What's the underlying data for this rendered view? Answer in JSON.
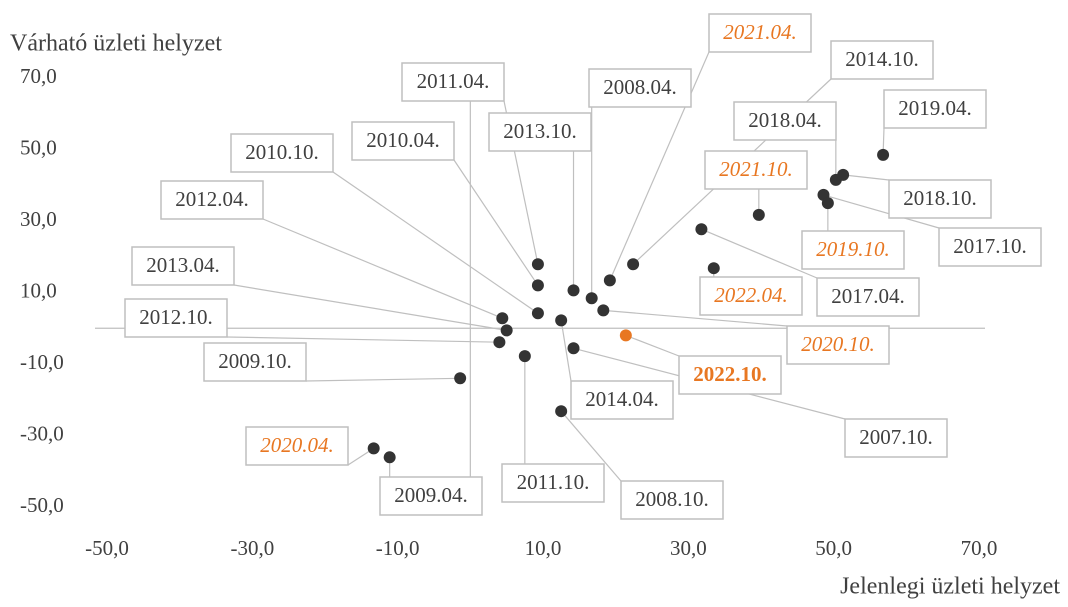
{
  "chart_data": {
    "type": "scatter",
    "y_label": "Várható üzleti helyzet",
    "x_label": "Jelenlegi üzleti helyzet",
    "xlim": [
      -50,
      70
    ],
    "ylim": [
      -50,
      70
    ],
    "xticks": [
      {
        "value": -50,
        "label": "-50,0"
      },
      {
        "value": -30,
        "label": "-30,0"
      },
      {
        "value": -10,
        "label": "-10,0"
      },
      {
        "value": 10,
        "label": "10,0"
      },
      {
        "value": 30,
        "label": "30,0"
      },
      {
        "value": 50,
        "label": "50,0"
      },
      {
        "value": 70,
        "label": "70,0"
      }
    ],
    "yticks": [
      {
        "value": 70,
        "label": "70,0"
      },
      {
        "value": 50,
        "label": "50,0"
      },
      {
        "value": 30,
        "label": "30,0"
      },
      {
        "value": 10,
        "label": "10,0"
      },
      {
        "value": -10,
        "label": "-10,0"
      },
      {
        "value": -30,
        "label": "-30,0"
      },
      {
        "value": -50,
        "label": "-50,0"
      }
    ],
    "color": "#333333",
    "highlight_color": "#e87722",
    "points": [
      {
        "label": "2021.04.",
        "x": 19.2,
        "y": 13.4,
        "emphasis": "italic"
      },
      {
        "label": "2014.10.",
        "x": 22.4,
        "y": 17.9
      },
      {
        "label": "2011.04.",
        "x": 9.3,
        "y": 17.9
      },
      {
        "label": "2008.04.",
        "x": 16.7,
        "y": 8.4
      },
      {
        "label": "2019.04.",
        "x": 56.8,
        "y": 48.5
      },
      {
        "label": "2018.04.",
        "x": 50.3,
        "y": 41.5
      },
      {
        "label": "2010.04.",
        "x": 9.3,
        "y": 12.0
      },
      {
        "label": "2013.10.",
        "x": 14.2,
        "y": 10.6
      },
      {
        "label": "2010.10.",
        "x": 9.3,
        "y": 4.2
      },
      {
        "label": "2021.10.",
        "x": 39.7,
        "y": 31.7,
        "emphasis": "italic"
      },
      {
        "label": "2018.10.",
        "x": 51.3,
        "y": 42.9
      },
      {
        "label": "2012.04.",
        "x": 4.4,
        "y": 2.8
      },
      {
        "label": "2017.10.",
        "x": 48.6,
        "y": 37.3
      },
      {
        "label": "2019.10.",
        "x": 49.2,
        "y": 35.0,
        "emphasis": "italic"
      },
      {
        "label": "2013.04.",
        "x": 5.0,
        "y": -0.6
      },
      {
        "label": "2017.04.",
        "x": 31.8,
        "y": 27.7
      },
      {
        "label": "2022.04.",
        "x": 33.5,
        "y": 16.8,
        "emphasis": "italic"
      },
      {
        "label": "2012.10.",
        "x": 4.0,
        "y": -3.9
      },
      {
        "label": "2020.10.",
        "x": 18.3,
        "y": 5.0,
        "emphasis": "italic"
      },
      {
        "label": "2009.10.",
        "x": -1.4,
        "y": -14.0
      },
      {
        "label": "2022.10.",
        "x": 21.4,
        "y": -2.0,
        "emphasis": "bold"
      },
      {
        "label": "2014.04.",
        "x": 12.5,
        "y": 2.2
      },
      {
        "label": "2007.10.",
        "x": 14.2,
        "y": -5.6
      },
      {
        "label": "2020.04.",
        "x": -13.3,
        "y": -33.6,
        "emphasis": "italic"
      },
      {
        "label": "2011.10.",
        "x": 7.5,
        "y": -7.8
      },
      {
        "label": "2009.04.",
        "x": -11.1,
        "y": -36.1
      },
      {
        "label": "2008.10.",
        "x": 12.5,
        "y": -23.2
      }
    ]
  }
}
